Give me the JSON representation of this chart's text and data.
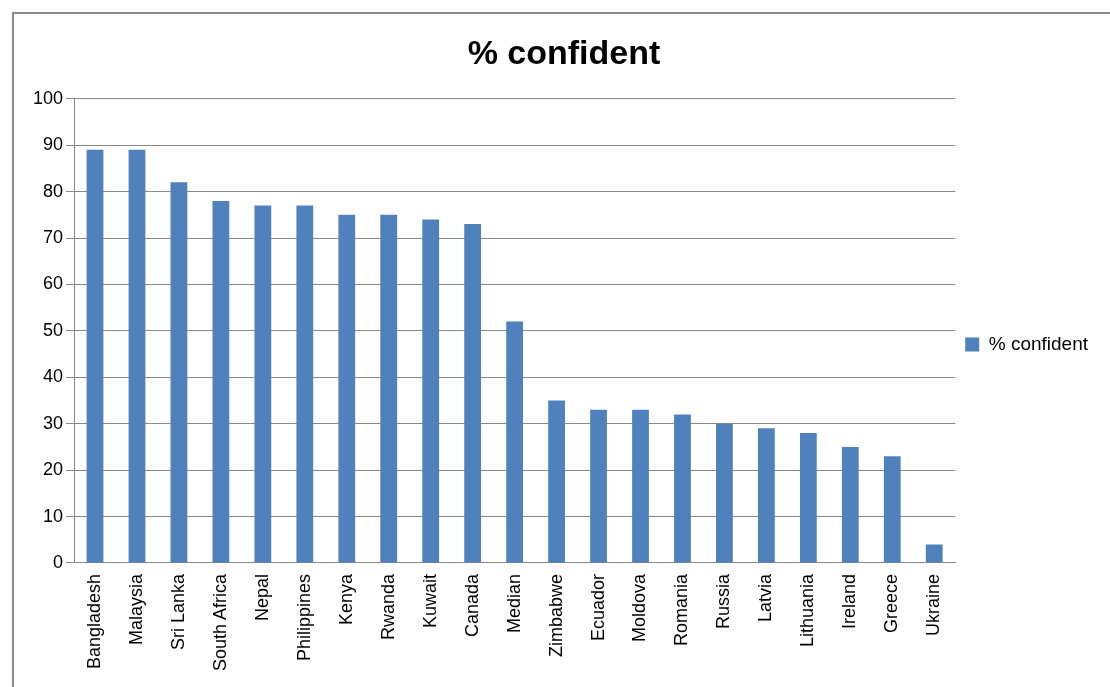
{
  "chart_data": {
    "type": "bar",
    "title": "% confident",
    "categories": [
      "Bangladesh",
      "Malaysia",
      "Sri Lanka",
      "South Africa",
      "Nepal",
      "Philippines",
      "Kenya",
      "Rwanda",
      "Kuwait",
      "Canada",
      "Median",
      "Zimbabwe",
      "Ecuador",
      "Moldova",
      "Romania",
      "Russia",
      "Latvia",
      "Lithuania",
      "Ireland",
      "Greece",
      "Ukraine"
    ],
    "series": [
      {
        "name": "% confident",
        "color": "#4f81bd",
        "values": [
          89,
          89,
          82,
          78,
          77,
          77,
          75,
          75,
          74,
          73,
          52,
          35,
          33,
          33,
          32,
          30,
          29,
          28,
          25,
          23,
          4
        ]
      }
    ],
    "ylim": [
      0,
      100
    ],
    "yticks": [
      0,
      10,
      20,
      30,
      40,
      50,
      60,
      70,
      80,
      90,
      100
    ],
    "grid": "y",
    "legend": "right"
  }
}
